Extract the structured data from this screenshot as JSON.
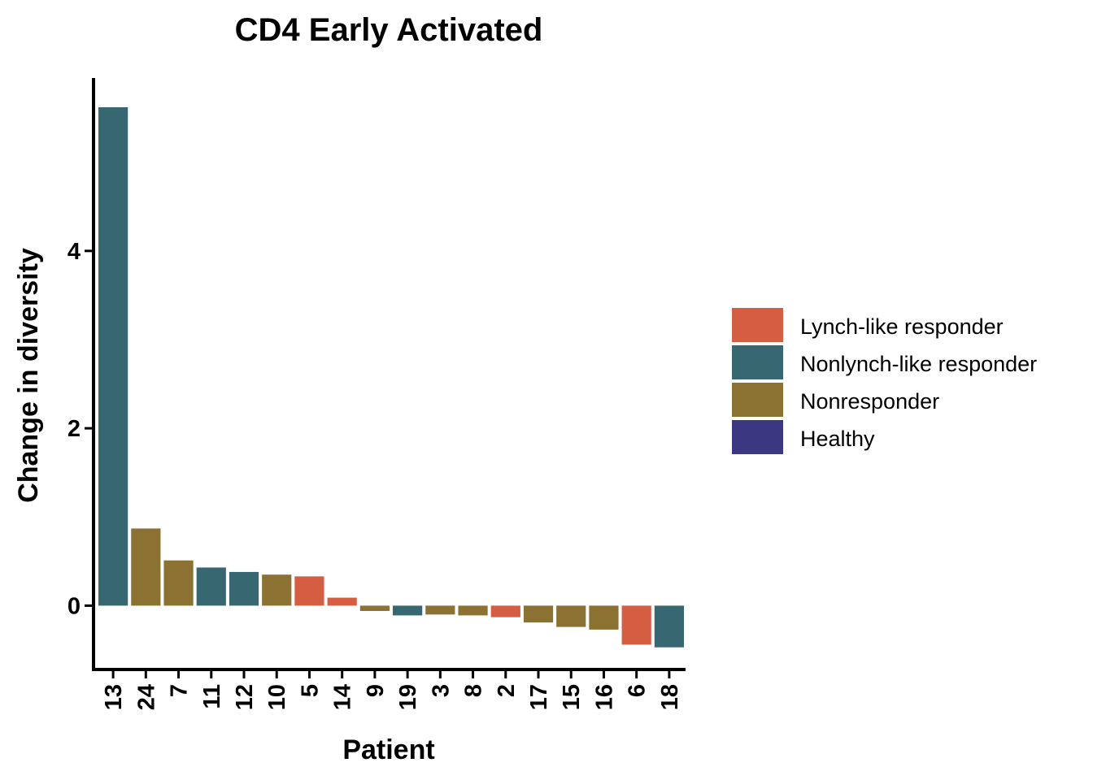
{
  "chart_data": {
    "type": "bar",
    "title": "CD4 Early Activated",
    "xlabel": "Patient",
    "ylabel": "Change in diversity",
    "ylim": [
      -0.72,
      5.95
    ],
    "yticks": [
      0,
      2,
      4
    ],
    "grid": false,
    "legend_position": "right",
    "groups": [
      {
        "name": "Lynch-like responder",
        "color": "#D45D42"
      },
      {
        "name": "Nonlynch-like responder",
        "color": "#376770"
      },
      {
        "name": "Nonresponder",
        "color": "#8B7233"
      },
      {
        "name": "Healthy",
        "color": "#3B3780"
      }
    ],
    "categories": [
      "13",
      "24",
      "7",
      "11",
      "12",
      "10",
      "5",
      "14",
      "9",
      "19",
      "3",
      "8",
      "2",
      "17",
      "15",
      "16",
      "6",
      "18"
    ],
    "values": [
      5.62,
      0.87,
      0.51,
      0.43,
      0.38,
      0.35,
      0.33,
      0.09,
      -0.06,
      -0.11,
      -0.1,
      -0.11,
      -0.13,
      -0.19,
      -0.24,
      -0.27,
      -0.44,
      -0.47
    ],
    "bar_groups": [
      "Nonlynch-like responder",
      "Nonresponder",
      "Nonresponder",
      "Nonlynch-like responder",
      "Nonlynch-like responder",
      "Nonresponder",
      "Lynch-like responder",
      "Lynch-like responder",
      "Nonresponder",
      "Nonlynch-like responder",
      "Nonresponder",
      "Nonresponder",
      "Lynch-like responder",
      "Nonresponder",
      "Nonresponder",
      "Nonresponder",
      "Lynch-like responder",
      "Nonlynch-like responder"
    ]
  }
}
